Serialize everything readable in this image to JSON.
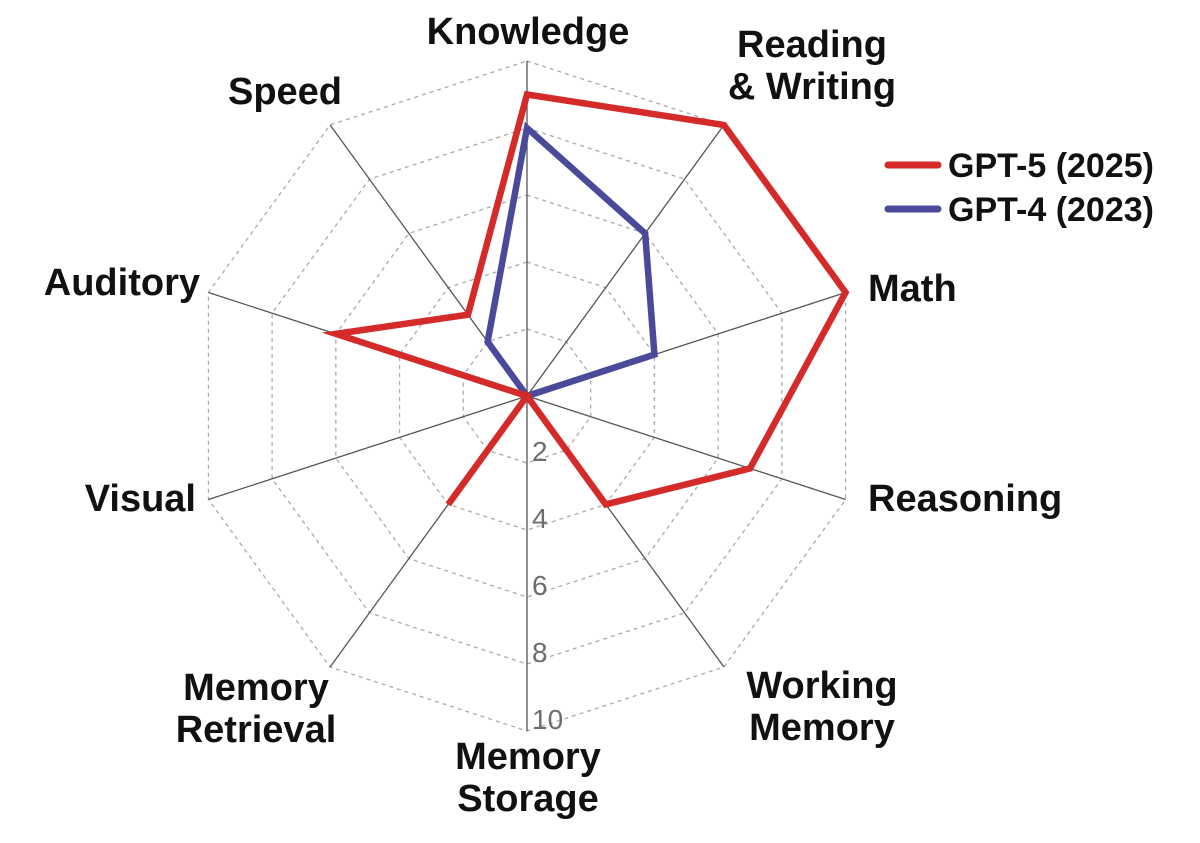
{
  "chart_data": {
    "type": "radar",
    "axes": [
      "Knowledge",
      "Reading & Writing",
      "Math",
      "Reasoning",
      "Working Memory",
      "Memory Storage",
      "Memory Retrieval",
      "Visual",
      "Auditory",
      "Speed"
    ],
    "axis_label_lines": [
      [
        "Knowledge"
      ],
      [
        "Reading",
        "& Writing"
      ],
      [
        "Math"
      ],
      [
        "Reasoning"
      ],
      [
        "Working",
        "Memory"
      ],
      [
        "Memory",
        "Storage"
      ],
      [
        "Memory",
        "Retrieval"
      ],
      [
        "Visual"
      ],
      [
        "Auditory"
      ],
      [
        "Speed"
      ]
    ],
    "range": [
      0,
      10
    ],
    "ticks": [
      2,
      4,
      6,
      8,
      10
    ],
    "tick_labels": [
      "2",
      "4",
      "6",
      "8",
      "10"
    ],
    "series": [
      {
        "name": "GPT-5 (2025)",
        "color": "#d42a2a",
        "values": [
          9,
          10,
          10,
          7,
          4,
          0,
          4,
          0,
          6,
          3
        ]
      },
      {
        "name": "GPT-4 (2023)",
        "color": "#4a4a9a",
        "values": [
          8,
          6,
          4,
          0,
          0,
          0,
          0,
          0,
          0,
          2
        ]
      }
    ],
    "grid": true,
    "legend_position": "top-right"
  }
}
